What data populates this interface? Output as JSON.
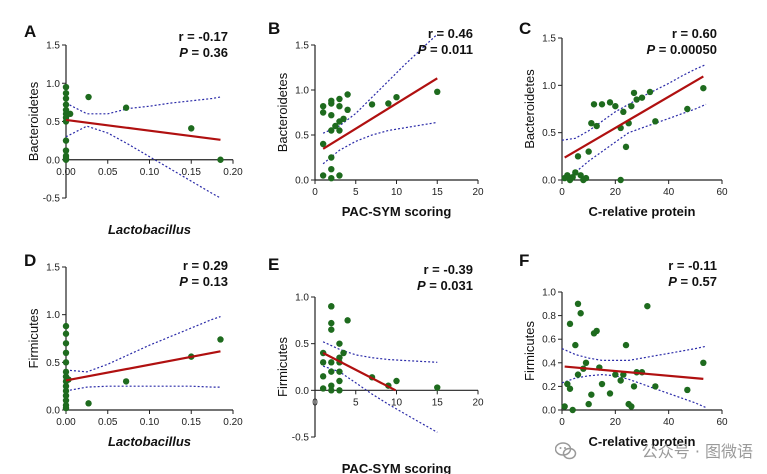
{
  "watermark": "公众号 · 图微语",
  "colors": {
    "point": "#1e6b1e",
    "fit": "#b01010",
    "ci": "#2a2aa8",
    "axis": "#222222"
  },
  "chart_data": [
    {
      "type": "scatter",
      "panel": "A",
      "ylabel": "Bacteroidetes",
      "xlabel": "Lactobacillus",
      "xlabel_italic": true,
      "stat_r": "r = -0.17",
      "stat_p": "0.36",
      "xlim": [
        0,
        0.2
      ],
      "ylim": [
        -0.5,
        1.5
      ],
      "xticks": [
        0,
        0.05,
        0.1,
        0.15,
        0.2
      ],
      "xticklabels": [
        "0.00",
        "0.05",
        "0.10",
        "0.15",
        "0.20"
      ],
      "yticks": [
        -0.5,
        0,
        0.5,
        1,
        1.5
      ],
      "yticklabels": [
        "-0.5",
        "0.0",
        "0.5",
        "1.0",
        "1.5"
      ],
      "points": [
        [
          0,
          0
        ],
        [
          0,
          0.02
        ],
        [
          0,
          0.05
        ],
        [
          0,
          0.12
        ],
        [
          0,
          0.25
        ],
        [
          0,
          0.5
        ],
        [
          0,
          0.55
        ],
        [
          0,
          0.6
        ],
        [
          0,
          0.65
        ],
        [
          0,
          0.72
        ],
        [
          0,
          0.8
        ],
        [
          0,
          0.87
        ],
        [
          0,
          0.95
        ],
        [
          0.005,
          0.6
        ],
        [
          0.027,
          0.82
        ],
        [
          0.072,
          0.68
        ],
        [
          0.15,
          0.41
        ],
        [
          0.185,
          0.0
        ]
      ],
      "fit": [
        0.52,
        -1.4
      ],
      "ci": {
        "xs": [
          0,
          0.025,
          0.05,
          0.075,
          0.1,
          0.125,
          0.15,
          0.175,
          0.185
        ],
        "upper": [
          0.74,
          0.6,
          0.6,
          0.67,
          0.7,
          0.74,
          0.77,
          0.8,
          0.82
        ],
        "lower": [
          0.3,
          0.44,
          0.35,
          0.2,
          0.04,
          -0.12,
          -0.28,
          -0.44,
          -0.5
        ]
      }
    },
    {
      "type": "scatter",
      "panel": "B",
      "ylabel": "Bacteroidetes",
      "xlabel": "PAC-SYM scoring",
      "xlabel_italic": false,
      "stat_r": "r = 0.46",
      "stat_p": "0.011",
      "xlim": [
        0,
        20
      ],
      "ylim": [
        0,
        1.5
      ],
      "xticks": [
        0,
        5,
        10,
        15,
        20
      ],
      "xticklabels": [
        "0",
        "5",
        "10",
        "15",
        "20"
      ],
      "yticks": [
        0,
        0.5,
        1,
        1.5
      ],
      "yticklabels": [
        "0.0",
        "0.5",
        "1.0",
        "1.5"
      ],
      "points": [
        [
          1,
          0.05
        ],
        [
          1,
          0.4
        ],
        [
          1,
          0.75
        ],
        [
          1,
          0.82
        ],
        [
          2,
          0.02
        ],
        [
          2,
          0.12
        ],
        [
          2,
          0.25
        ],
        [
          2,
          0.55
        ],
        [
          2,
          0.72
        ],
        [
          2,
          0.85
        ],
        [
          2,
          0.88
        ],
        [
          2.5,
          0.6
        ],
        [
          3,
          0.05
        ],
        [
          3,
          0.55
        ],
        [
          3,
          0.65
        ],
        [
          3,
          0.82
        ],
        [
          3,
          0.9
        ],
        [
          3.5,
          0.68
        ],
        [
          4,
          0.78
        ],
        [
          4,
          0.95
        ],
        [
          7,
          0.84
        ],
        [
          9,
          0.85
        ],
        [
          10,
          0.92
        ],
        [
          15,
          0.98
        ]
      ],
      "fit": [
        0.29,
        0.056
      ],
      "ci": {
        "xs": [
          1,
          3,
          5,
          7,
          9,
          11,
          13,
          15
        ],
        "upper": [
          0.52,
          0.6,
          0.74,
          0.92,
          1.1,
          1.28,
          1.45,
          1.62
        ],
        "lower": [
          0.18,
          0.33,
          0.43,
          0.5,
          0.55,
          0.58,
          0.61,
          0.64
        ]
      }
    },
    {
      "type": "scatter",
      "panel": "C",
      "ylabel": "Bacteroidetes",
      "xlabel": "C-relative protein",
      "xlabel_italic": false,
      "stat_r": "r = 0.60",
      "stat_p": "0.00050",
      "xlim": [
        0,
        60
      ],
      "ylim": [
        0,
        1.5
      ],
      "xticks": [
        0,
        20,
        40,
        60
      ],
      "xticklabels": [
        "0",
        "20",
        "40",
        "60"
      ],
      "yticks": [
        0,
        0.5,
        1,
        1.5
      ],
      "yticklabels": [
        "0.0",
        "0.5",
        "1.0",
        "1.5"
      ],
      "points": [
        [
          1,
          0.02
        ],
        [
          2,
          0.05
        ],
        [
          3,
          0.0
        ],
        [
          4,
          0.03
        ],
        [
          5,
          0.08
        ],
        [
          6,
          0.25
        ],
        [
          7,
          0.05
        ],
        [
          8,
          0.0
        ],
        [
          9,
          0.02
        ],
        [
          10,
          0.3
        ],
        [
          11,
          0.6
        ],
        [
          12,
          0.8
        ],
        [
          13,
          0.57
        ],
        [
          15,
          0.8
        ],
        [
          18,
          0.82
        ],
        [
          20,
          0.78
        ],
        [
          22,
          0.55
        ],
        [
          23,
          0.72
        ],
        [
          24,
          0.35
        ],
        [
          25,
          0.6
        ],
        [
          26,
          0.78
        ],
        [
          27,
          0.92
        ],
        [
          28,
          0.85
        ],
        [
          30,
          0.87
        ],
        [
          33,
          0.93
        ],
        [
          35,
          0.62
        ],
        [
          22,
          0.0
        ],
        [
          47,
          0.75
        ],
        [
          53,
          0.97
        ]
      ],
      "fit": [
        0.22,
        0.0165
      ],
      "ci": {
        "xs": [
          0,
          5,
          10,
          15,
          20,
          25,
          30,
          35,
          40,
          45,
          50,
          54
        ],
        "upper": [
          0.42,
          0.44,
          0.52,
          0.62,
          0.72,
          0.8,
          0.88,
          0.95,
          1.02,
          1.1,
          1.17,
          1.22
        ],
        "lower": [
          0.0,
          0.08,
          0.2,
          0.3,
          0.4,
          0.5,
          0.55,
          0.6,
          0.65,
          0.7,
          0.75,
          0.8
        ]
      }
    },
    {
      "type": "scatter",
      "panel": "D",
      "ylabel": "Firmicutes",
      "xlabel": "Lactobacillus",
      "xlabel_italic": true,
      "stat_r": "r = 0.29",
      "stat_p": "0.13",
      "xlim": [
        0,
        0.2
      ],
      "ylim": [
        0,
        1.5
      ],
      "xticks": [
        0,
        0.05,
        0.1,
        0.15,
        0.2
      ],
      "xticklabels": [
        "0.00",
        "0.05",
        "0.10",
        "0.15",
        "0.20"
      ],
      "yticks": [
        0,
        0.5,
        1,
        1.5
      ],
      "yticklabels": [
        "0.0",
        "0.5",
        "1.0",
        "1.5"
      ],
      "points": [
        [
          0,
          0.02
        ],
        [
          0,
          0.05
        ],
        [
          0,
          0.1
        ],
        [
          0,
          0.15
        ],
        [
          0,
          0.2
        ],
        [
          0,
          0.25
        ],
        [
          0,
          0.3
        ],
        [
          0,
          0.35
        ],
        [
          0,
          0.4
        ],
        [
          0,
          0.5
        ],
        [
          0,
          0.6
        ],
        [
          0,
          0.7
        ],
        [
          0,
          0.8
        ],
        [
          0,
          0.88
        ],
        [
          0.003,
          0.32
        ],
        [
          0.027,
          0.07
        ],
        [
          0.072,
          0.3
        ],
        [
          0.15,
          0.56
        ],
        [
          0.185,
          0.74
        ]
      ],
      "fit": [
        0.31,
        1.65
      ],
      "ci": {
        "xs": [
          0,
          0.025,
          0.05,
          0.075,
          0.1,
          0.125,
          0.15,
          0.175,
          0.185
        ],
        "upper": [
          0.42,
          0.4,
          0.48,
          0.58,
          0.68,
          0.77,
          0.86,
          0.95,
          0.98
        ],
        "lower": [
          0.2,
          0.24,
          0.25,
          0.25,
          0.25,
          0.25,
          0.25,
          0.24,
          0.24
        ]
      }
    },
    {
      "type": "scatter",
      "panel": "E",
      "ylabel": "Firmicutes",
      "xlabel": "PAC-SYM scoring",
      "xlabel_italic": false,
      "stat_r": "r = -0.39",
      "stat_p": "0.031",
      "xlim": [
        0,
        20
      ],
      "ylim": [
        -0.5,
        1
      ],
      "xticks": [
        0,
        5,
        10,
        15,
        20
      ],
      "xticklabels": [
        "0",
        "5",
        "10",
        "15",
        "20"
      ],
      "yticks": [
        -0.5,
        0,
        0.5,
        1
      ],
      "yticklabels": [
        "-0.5",
        "0.0",
        "0.5",
        "1.0"
      ],
      "points": [
        [
          1,
          0.02
        ],
        [
          1,
          0.15
        ],
        [
          1,
          0.3
        ],
        [
          1,
          0.4
        ],
        [
          2,
          0.0
        ],
        [
          2,
          0.05
        ],
        [
          2,
          0.2
        ],
        [
          2,
          0.3
        ],
        [
          2,
          0.65
        ],
        [
          2,
          0.72
        ],
        [
          2,
          0.9
        ],
        [
          2,
          0.9
        ],
        [
          3,
          0.0
        ],
        [
          3,
          0.1
        ],
        [
          3,
          0.2
        ],
        [
          3,
          0.3
        ],
        [
          3,
          0.35
        ],
        [
          3,
          0.5
        ],
        [
          3.5,
          0.4
        ],
        [
          4,
          0.75
        ],
        [
          7,
          0.14
        ],
        [
          9,
          0.05
        ],
        [
          10,
          0.1
        ],
        [
          15,
          0.03
        ]
      ],
      "fit": [
        0.445,
        -0.045
      ],
      "ci": {
        "xs": [
          1,
          3,
          5,
          7,
          9,
          11,
          13,
          15
        ],
        "upper": [
          0.52,
          0.44,
          0.38,
          0.35,
          0.33,
          0.32,
          0.31,
          0.3
        ],
        "lower": [
          0.26,
          0.2,
          0.08,
          -0.04,
          -0.15,
          -0.25,
          -0.35,
          -0.45
        ]
      }
    },
    {
      "type": "scatter",
      "panel": "F",
      "ylabel": "Firmicutes",
      "xlabel": "C-relative protein",
      "xlabel_italic": false,
      "stat_r": "r = -0.11",
      "stat_p": "0.57",
      "xlim": [
        0,
        60
      ],
      "ylim": [
        0,
        1
      ],
      "xticks": [
        0,
        20,
        40,
        60
      ],
      "xticklabels": [
        "0",
        "20",
        "40",
        "60"
      ],
      "yticks": [
        0,
        0.2,
        0.4,
        0.6,
        0.8,
        1
      ],
      "yticklabels": [
        "0.0",
        "0.2",
        "0.4",
        "0.6",
        "0.8",
        "1.0"
      ],
      "points": [
        [
          1,
          0.03
        ],
        [
          2,
          0.22
        ],
        [
          3,
          0.18
        ],
        [
          3,
          0.73
        ],
        [
          4,
          0.0
        ],
        [
          5,
          0.55
        ],
        [
          6,
          0.9
        ],
        [
          6,
          0.3
        ],
        [
          7,
          0.82
        ],
        [
          8,
          0.35
        ],
        [
          9,
          0.4
        ],
        [
          10,
          0.05
        ],
        [
          11,
          0.13
        ],
        [
          12,
          0.65
        ],
        [
          13,
          0.67
        ],
        [
          14,
          0.36
        ],
        [
          15,
          0.22
        ],
        [
          18,
          0.14
        ],
        [
          20,
          0.3
        ],
        [
          22,
          0.25
        ],
        [
          23,
          0.3
        ],
        [
          24,
          0.55
        ],
        [
          25,
          0.05
        ],
        [
          26,
          0.03
        ],
        [
          27,
          0.2
        ],
        [
          28,
          0.32
        ],
        [
          30,
          0.32
        ],
        [
          32,
          0.88
        ],
        [
          35,
          0.2
        ],
        [
          47,
          0.17
        ],
        [
          53,
          0.4
        ]
      ],
      "fit": [
        0.37,
        -0.002
      ],
      "ci": {
        "xs": [
          0,
          5,
          10,
          15,
          20,
          25,
          30,
          35,
          40,
          45,
          50,
          54
        ],
        "upper": [
          0.52,
          0.47,
          0.44,
          0.42,
          0.42,
          0.42,
          0.44,
          0.46,
          0.48,
          0.5,
          0.52,
          0.54
        ],
        "lower": [
          0.23,
          0.27,
          0.29,
          0.3,
          0.29,
          0.26,
          0.22,
          0.18,
          0.14,
          0.1,
          0.06,
          0.02
        ]
      }
    }
  ]
}
